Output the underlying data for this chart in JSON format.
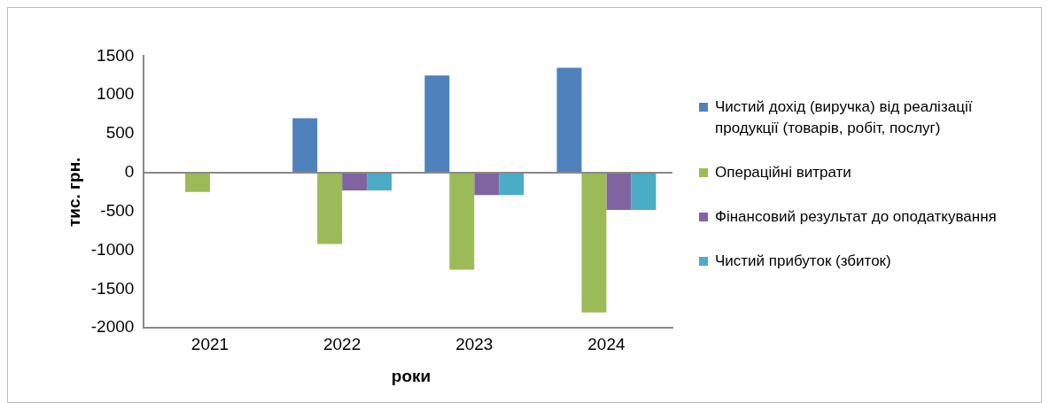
{
  "chart_data": {
    "type": "bar",
    "xlabel": "роки",
    "ylabel": "тис. грн.",
    "categories": [
      "2021",
      "2022",
      "2023",
      "2024"
    ],
    "series": [
      {
        "name": "Чистий дохід (виручка) від реалізації продукції (товарів, робіт, послуг)",
        "color": "#4f81bd",
        "values": [
          0,
          700,
          1250,
          1350
        ]
      },
      {
        "name": "Операційні витрати",
        "color": "#9bbb59",
        "values": [
          -250,
          -920,
          -1250,
          -1800
        ]
      },
      {
        "name": "Фінансовий результат до оподаткування",
        "color": "#8064a2",
        "values": [
          0,
          -230,
          -290,
          -480
        ]
      },
      {
        "name": "Чистий прибуток (збиток)",
        "color": "#4bacc6",
        "values": [
          0,
          -230,
          -290,
          -480
        ]
      }
    ],
    "ylim": [
      -2000,
      1500
    ],
    "yticks": [
      -2000,
      -1500,
      -1000,
      -500,
      0,
      500,
      1000,
      1500
    ],
    "grid": false,
    "ref_lines": [
      {
        "axis": "y",
        "value": 0,
        "color": "#888888"
      }
    ],
    "legend": "right"
  }
}
